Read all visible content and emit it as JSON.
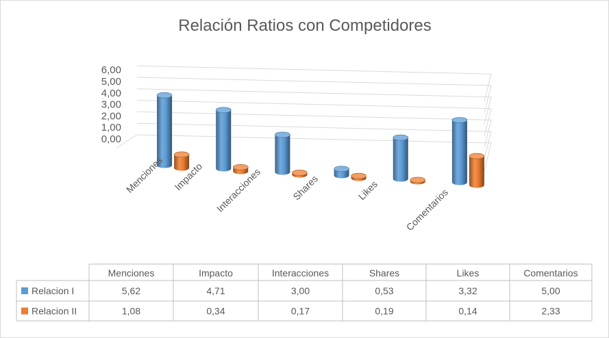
{
  "chart_data": {
    "type": "bar",
    "subtype": "3d-cylinder",
    "title": "Relación Ratios con Competidores",
    "categories": [
      "Menciones",
      "Impacto",
      "Interacciones",
      "Shares",
      "Likes",
      "Comentarios"
    ],
    "series": [
      {
        "name": "Relacion I",
        "color": "#5b9bd5",
        "values": [
          5.62,
          4.71,
          3.0,
          0.53,
          3.32,
          5.0
        ],
        "labels": [
          "5,62",
          "4,71",
          "3,00",
          "0,53",
          "3,32",
          "5,00"
        ]
      },
      {
        "name": "Relacion II",
        "color": "#ed7d31",
        "values": [
          1.08,
          0.34,
          0.17,
          0.19,
          0.14,
          2.33
        ],
        "labels": [
          "1,08",
          "0,34",
          "0,17",
          "0,19",
          "0,14",
          "2,33"
        ]
      }
    ],
    "ylim": [
      0,
      6
    ],
    "yticks": [
      "0,00",
      "1,00",
      "2,00",
      "3,00",
      "4,00",
      "5,00",
      "6,00"
    ],
    "grid": true,
    "legend": "data-table"
  }
}
